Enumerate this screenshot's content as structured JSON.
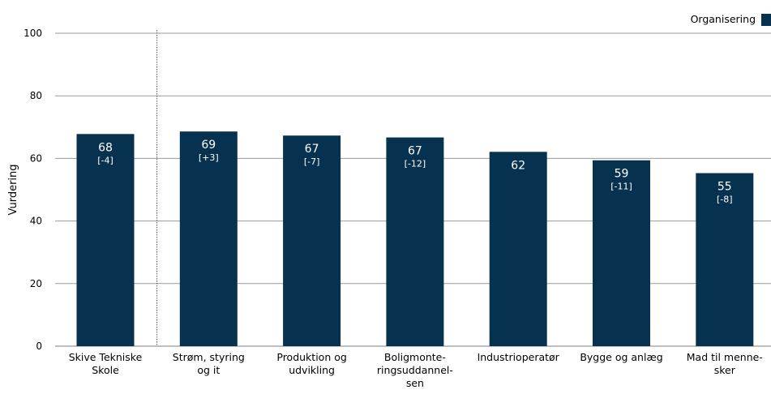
{
  "chart_data": {
    "type": "bar",
    "title": "",
    "xlabel": "",
    "ylabel": "Vurdering",
    "ylim": [
      0,
      100
    ],
    "yticks": [
      0,
      20,
      40,
      60,
      80,
      100
    ],
    "grid": true,
    "legend_position": "top-right",
    "series": [
      {
        "name": "Organisering",
        "color": "#06324f",
        "values": [
          67.8,
          68.6,
          67.3,
          66.7,
          62.1,
          59.4,
          55.3
        ],
        "value_labels": [
          "68",
          "69",
          "67",
          "67",
          "62",
          "59",
          "55"
        ],
        "change_labels": [
          "[-4]",
          "[+3]",
          "[-7]",
          "[-12]",
          "",
          "[-11]",
          "[-8]"
        ]
      }
    ],
    "categories": [
      [
        "Skive Tekniske",
        "Skole"
      ],
      [
        "Strøm, styring",
        "og it"
      ],
      [
        "Produktion og",
        "udvikling"
      ],
      [
        "Boligmonte-",
        "ringsuddannel-",
        "sen"
      ],
      [
        "Industrioperatør"
      ],
      [
        "Bygge og anlæg"
      ],
      [
        "Mad til menne-",
        "sker"
      ]
    ],
    "separator_after_index": 0
  }
}
